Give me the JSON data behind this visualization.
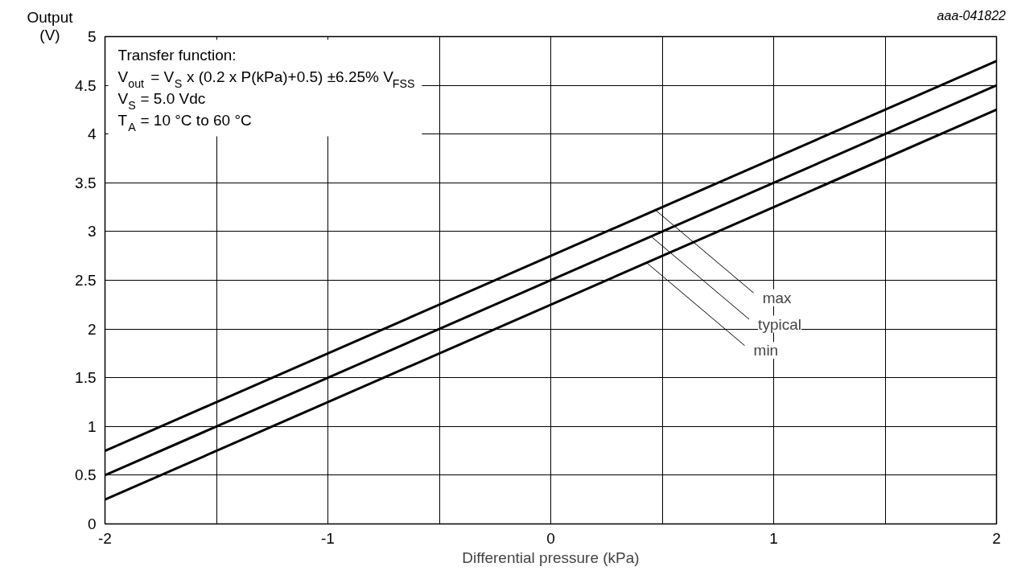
{
  "chart_data": {
    "type": "line",
    "xlabel": "Differential pressure (kPa)",
    "ylabel": "Output\n(V)",
    "x": [
      -2,
      2
    ],
    "series": [
      {
        "color": "#000000",
        "values": [
          0.75,
          4.75
        ]
      },
      {
        "color": "#000000",
        "values": [
          0.5,
          4.5
        ]
      },
      {
        "color": "#000000",
        "values": [
          0.25,
          4.25
        ]
      }
    ],
    "xlim": [
      -2,
      2
    ],
    "xticks": [
      -2,
      {
        "value": -1.5,
        "label": null
      },
      -1,
      {
        "value": -0.5,
        "label": null
      },
      0,
      {
        "value": 0.5,
        "label": null
      },
      1,
      {
        "value": 1.5,
        "label": null
      },
      2
    ],
    "ylim": [
      0,
      5
    ],
    "yticks": [
      0,
      0.5,
      1,
      1.5,
      2,
      2.5,
      3,
      3.5,
      4,
      4.5,
      5
    ],
    "grid": true,
    "line_style": "solid",
    "marker": "none",
    "annotations": [
      "aaa-041822",
      "Transfer function:",
      "V$_{out}$ = V$_{S}$ x (0.2 x P(kPa)+0.5) ±6.25% V$_{FSS}$",
      "V$_{S}$ = 5.0 Vdc",
      "T$_{A}$ = 10 °C to 60 °C",
      {
        "text": "max",
        "x": 0.47,
        "y": 3.22
      },
      {
        "text": "typical",
        "x": 0.45,
        "y": 2.95
      },
      {
        "text": "min",
        "x": 0.43,
        "y": 2.68
      }
    ]
  }
}
